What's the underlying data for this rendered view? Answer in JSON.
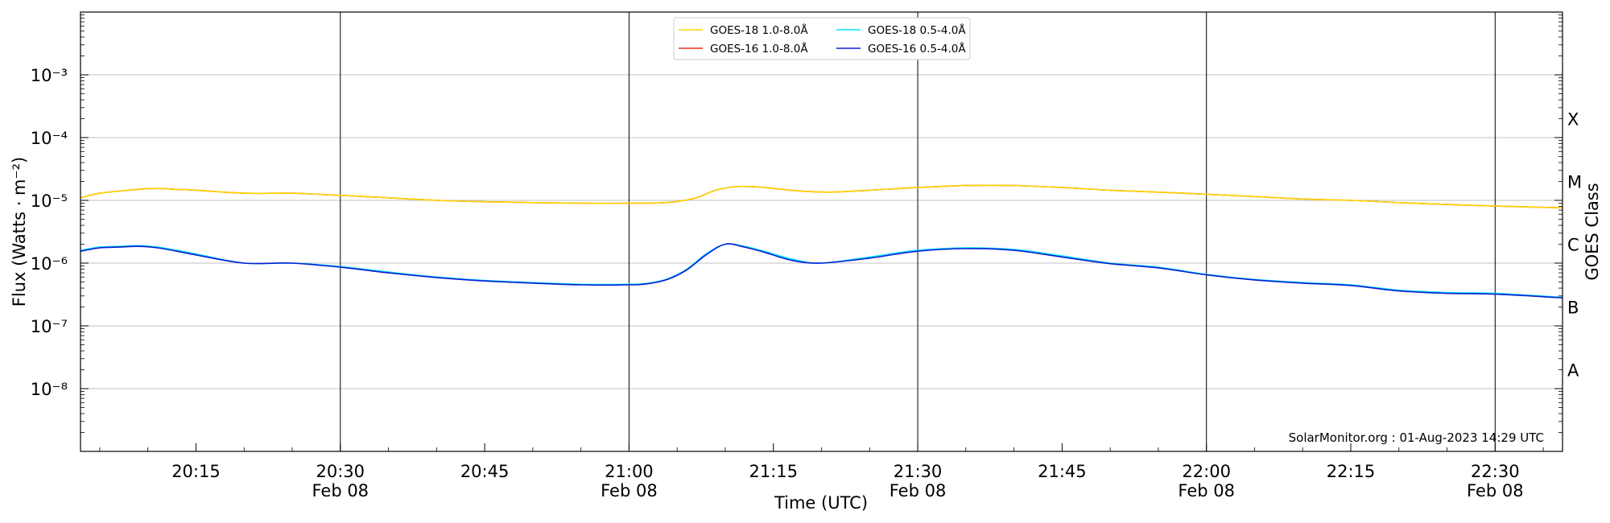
{
  "chart_data": {
    "type": "line",
    "xlabel": "Time (UTC)",
    "ylabel": "Flux (Watts · m⁻²)",
    "ylabel_right": "GOES Class",
    "y_scale": "log",
    "ylim": [
      1e-09,
      0.01
    ],
    "xlim": [
      "2023-02-08T20:03",
      "2023-02-08T22:37"
    ],
    "grid": "horizontal",
    "credit": "SolarMonitor.org : 01-Aug-2023 14:29 UTC",
    "x_ticks": [
      {
        "time": "20:15",
        "date": ""
      },
      {
        "time": "20:30",
        "date": "Feb 08"
      },
      {
        "time": "20:45",
        "date": ""
      },
      {
        "time": "21:00",
        "date": "Feb 08"
      },
      {
        "time": "21:15",
        "date": ""
      },
      {
        "time": "21:30",
        "date": "Feb 08"
      },
      {
        "time": "21:45",
        "date": ""
      },
      {
        "time": "22:00",
        "date": "Feb 08"
      },
      {
        "time": "22:15",
        "date": ""
      },
      {
        "time": "22:30",
        "date": "Feb 08"
      }
    ],
    "y_ticks": [
      "10⁻³",
      "10⁻⁴",
      "10⁻⁵",
      "10⁻⁶",
      "10⁻⁷",
      "10⁻⁸"
    ],
    "vlines": [
      "20:30",
      "21:00",
      "21:30",
      "22:00",
      "22:30"
    ],
    "classes": [
      {
        "label": "X",
        "flux": 0.0002
      },
      {
        "label": "M",
        "flux": 2e-05
      },
      {
        "label": "C",
        "flux": 2e-06
      },
      {
        "label": "B",
        "flux": 2e-07
      },
      {
        "label": "A",
        "flux": 2e-08
      }
    ],
    "legend": [
      {
        "label": "GOES-18 1.0-8.0Å",
        "color": "#ffd700"
      },
      {
        "label": "GOES-18 0.5-4.0Å",
        "color": "#00e5ff"
      },
      {
        "label": "GOES-16 1.0-8.0Å",
        "color": "#e8321e"
      },
      {
        "label": "GOES-16 0.5-4.0Å",
        "color": "#0a1ed2"
      }
    ],
    "series": [
      {
        "name": "GOES-16 1.0-8.0Å",
        "color": "#e8321e",
        "x": [
          "20:03",
          "20:05",
          "20:07",
          "20:09",
          "20:11",
          "20:13",
          "20:15",
          "20:20",
          "20:25",
          "20:30",
          "20:35",
          "20:40",
          "20:45",
          "20:50",
          "20:55",
          "21:00",
          "21:03",
          "21:05",
          "21:07",
          "21:09",
          "21:11",
          "21:13",
          "21:15",
          "21:18",
          "21:21",
          "21:25",
          "21:30",
          "21:35",
          "21:40",
          "21:45",
          "21:50",
          "21:55",
          "22:00",
          "22:05",
          "22:10",
          "22:15",
          "22:20",
          "22:25",
          "22:30",
          "22:37"
        ],
        "y": [
          1.1e-05,
          1.3e-05,
          1.4e-05,
          1.5e-05,
          1.55e-05,
          1.5e-05,
          1.45e-05,
          1.3e-05,
          1.3e-05,
          1.2e-05,
          1.1e-05,
          1e-05,
          9.5e-06,
          9.2e-06,
          9e-06,
          9e-06,
          9.1e-06,
          9.6e-06,
          1.1e-05,
          1.45e-05,
          1.65e-05,
          1.65e-05,
          1.55e-05,
          1.4e-05,
          1.35e-05,
          1.45e-05,
          1.6e-05,
          1.72e-05,
          1.72e-05,
          1.6e-05,
          1.45e-05,
          1.35e-05,
          1.25e-05,
          1.15e-05,
          1.05e-05,
          1e-05,
          9.2e-06,
          8.6e-06,
          8.1e-06,
          7.6e-06
        ]
      },
      {
        "name": "GOES-18 1.0-8.0Å",
        "color": "#ffd700",
        "x": [
          "20:03",
          "20:05",
          "20:07",
          "20:09",
          "20:11",
          "20:13",
          "20:15",
          "20:20",
          "20:25",
          "20:30",
          "20:35",
          "20:40",
          "20:45",
          "20:50",
          "20:55",
          "21:00",
          "21:03",
          "21:05",
          "21:07",
          "21:09",
          "21:11",
          "21:13",
          "21:15",
          "21:18",
          "21:21",
          "21:25",
          "21:30",
          "21:35",
          "21:40",
          "21:45",
          "21:50",
          "21:55",
          "22:00",
          "22:05",
          "22:10",
          "22:15",
          "22:20",
          "22:25",
          "22:30",
          "22:37"
        ],
        "y": [
          1.1e-05,
          1.3e-05,
          1.4e-05,
          1.5e-05,
          1.55e-05,
          1.5e-05,
          1.45e-05,
          1.3e-05,
          1.3e-05,
          1.2e-05,
          1.1e-05,
          1e-05,
          9.5e-06,
          9.2e-06,
          9e-06,
          9e-06,
          9.1e-06,
          9.6e-06,
          1.1e-05,
          1.45e-05,
          1.65e-05,
          1.65e-05,
          1.55e-05,
          1.4e-05,
          1.35e-05,
          1.45e-05,
          1.6e-05,
          1.72e-05,
          1.72e-05,
          1.6e-05,
          1.45e-05,
          1.35e-05,
          1.25e-05,
          1.15e-05,
          1.05e-05,
          1e-05,
          9.2e-06,
          8.6e-06,
          8.1e-06,
          7.6e-06
        ]
      },
      {
        "name": "GOES-18 0.5-4.0Å",
        "color": "#00e5ff",
        "x": [
          "20:03",
          "20:05",
          "20:07",
          "20:09",
          "20:11",
          "20:13",
          "20:15",
          "20:20",
          "20:25",
          "20:30",
          "20:35",
          "20:40",
          "20:45",
          "20:50",
          "20:55",
          "21:00",
          "21:02",
          "21:04",
          "21:06",
          "21:08",
          "21:10",
          "21:12",
          "21:14",
          "21:17",
          "21:20",
          "21:25",
          "21:30",
          "21:35",
          "21:40",
          "21:45",
          "21:50",
          "21:55",
          "22:00",
          "22:05",
          "22:10",
          "22:15",
          "22:20",
          "22:25",
          "22:30",
          "22:37"
        ],
        "y": [
          1.6e-06,
          1.8e-06,
          1.85e-06,
          1.9e-06,
          1.8e-06,
          1.6e-06,
          1.4e-06,
          1e-06,
          1e-06,
          8.8e-07,
          7.2e-07,
          6e-07,
          5.3e-07,
          4.9e-07,
          4.6e-07,
          4.6e-07,
          4.8e-07,
          5.6e-07,
          8e-07,
          1.4e-06,
          2e-06,
          1.85e-06,
          1.55e-06,
          1.15e-06,
          1e-06,
          1.25e-06,
          1.6e-06,
          1.75e-06,
          1.65e-06,
          1.3e-06,
          1e-06,
          8.6e-07,
          6.6e-07,
          5.5e-07,
          4.9e-07,
          4.5e-07,
          3.7e-07,
          3.4e-07,
          3.3e-07,
          2.85e-07
        ]
      },
      {
        "name": "GOES-16 0.5-4.0Å",
        "color": "#0a1ed2",
        "x": [
          "20:03",
          "20:05",
          "20:07",
          "20:09",
          "20:11",
          "20:13",
          "20:15",
          "20:20",
          "20:25",
          "20:30",
          "20:35",
          "20:40",
          "20:45",
          "20:50",
          "20:55",
          "21:00",
          "21:02",
          "21:04",
          "21:06",
          "21:08",
          "21:10",
          "21:12",
          "21:14",
          "21:17",
          "21:20",
          "21:25",
          "21:30",
          "21:35",
          "21:40",
          "21:45",
          "21:50",
          "21:55",
          "22:00",
          "22:05",
          "22:10",
          "22:15",
          "22:20",
          "22:25",
          "22:30",
          "22:37"
        ],
        "y": [
          1.55e-06,
          1.75e-06,
          1.8e-06,
          1.85e-06,
          1.75e-06,
          1.55e-06,
          1.35e-06,
          1e-06,
          1e-06,
          8.6e-07,
          7e-07,
          5.9e-07,
          5.2e-07,
          4.8e-07,
          4.5e-07,
          4.5e-07,
          4.7e-07,
          5.5e-07,
          7.8e-07,
          1.35e-06,
          2e-06,
          1.8e-06,
          1.5e-06,
          1.1e-06,
          1e-06,
          1.2e-06,
          1.55e-06,
          1.7e-06,
          1.6e-06,
          1.25e-06,
          9.8e-07,
          8.4e-07,
          6.5e-07,
          5.4e-07,
          4.8e-07,
          4.4e-07,
          3.6e-07,
          3.3e-07,
          3.2e-07,
          2.8e-07
        ]
      }
    ]
  }
}
